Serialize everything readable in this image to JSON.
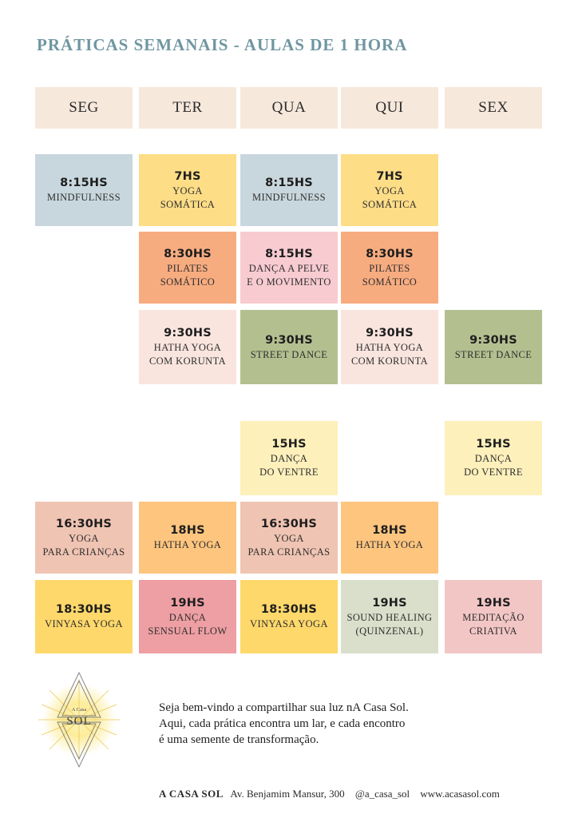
{
  "title": "PRÁTICAS SEMANAIS - AULAS DE 1 HORA",
  "days": [
    "SEG",
    "TER",
    "QUA",
    "QUI",
    "SEX"
  ],
  "classes": [
    {
      "time": "8:15HS",
      "name": "MINDFULNESS",
      "color": "#c8d7dd"
    },
    {
      "time": "7HS",
      "name": "YOGA\nSOMÁTICA",
      "color": "#fedd87"
    },
    {
      "time": "8:15HS",
      "name": "MINDFULNESS",
      "color": "#c8d7dd"
    },
    {
      "time": "7HS",
      "name": "YOGA\nSOMÁTICA",
      "color": "#fedd87"
    },
    {
      "time": "8:30HS",
      "name": "PILATES\nSOMÁTICO",
      "color": "#f7ac80"
    },
    {
      "time": "8:15HS",
      "name": "DANÇA A PELVE\nE O MOVIMENTO",
      "color": "#f8cbd0"
    },
    {
      "time": "8:30HS",
      "name": "PILATES\nSOMÁTICO",
      "color": "#f7ac80"
    },
    {
      "time": "9:30HS",
      "name": "HATHA YOGA\nCOM KORUNTA",
      "color": "#f9e5de"
    },
    {
      "time": "9:30HS",
      "name": "STREET DANCE",
      "color": "#b4bf8f"
    },
    {
      "time": "9:30HS",
      "name": "HATHA YOGA\nCOM KORUNTA",
      "color": "#f9e5de"
    },
    {
      "time": "9:30HS",
      "name": "STREET DANCE",
      "color": "#b4bf8f"
    },
    {
      "time": "15HS",
      "name": "DANÇA\nDO VENTRE",
      "color": "#fdf0bb"
    },
    {
      "time": "15HS",
      "name": "DANÇA\nDO VENTRE",
      "color": "#fdf0bb"
    },
    {
      "time": "16:30HS",
      "name": "YOGA\nPARA CRIANÇAS",
      "color": "#f0c4b3"
    },
    {
      "time": "18HS",
      "name": "HATHA YOGA",
      "color": "#fdc57e"
    },
    {
      "time": "16:30HS",
      "name": "YOGA\nPARA CRIANÇAS",
      "color": "#f0c4b3"
    },
    {
      "time": "18HS",
      "name": "HATHA YOGA",
      "color": "#fdc57e"
    },
    {
      "time": "18:30HS",
      "name": "VINYASA YOGA",
      "color": "#fed86b"
    },
    {
      "time": "19HS",
      "name": "DANÇA\nSENSUAL FLOW",
      "color": "#ee9fa3"
    },
    {
      "time": "18:30HS",
      "name": "VINYASA YOGA",
      "color": "#fed86b"
    },
    {
      "time": "19HS",
      "name": "SOUND HEALING\n(QUINZENAL)",
      "color": "#dadfcb"
    },
    {
      "time": "19HS",
      "name": "MEDITAÇÃO\nCRIATIVA",
      "color": "#f3c6c6"
    }
  ],
  "logo": {
    "small": "A Casa",
    "big": "SOL"
  },
  "welcome": {
    "line1": "Seja bem-vindo a compartilhar sua luz nA Casa Sol.",
    "line2": "Aqui, cada prática encontra um lar, e cada encontro",
    "line3": "é uma semente de transformação."
  },
  "footer": {
    "brand": "A CASA SOL",
    "address": "Av. Benjamim Mansur, 300",
    "instagram": "@a_casa_sol",
    "website": "www.acasasol.com"
  }
}
